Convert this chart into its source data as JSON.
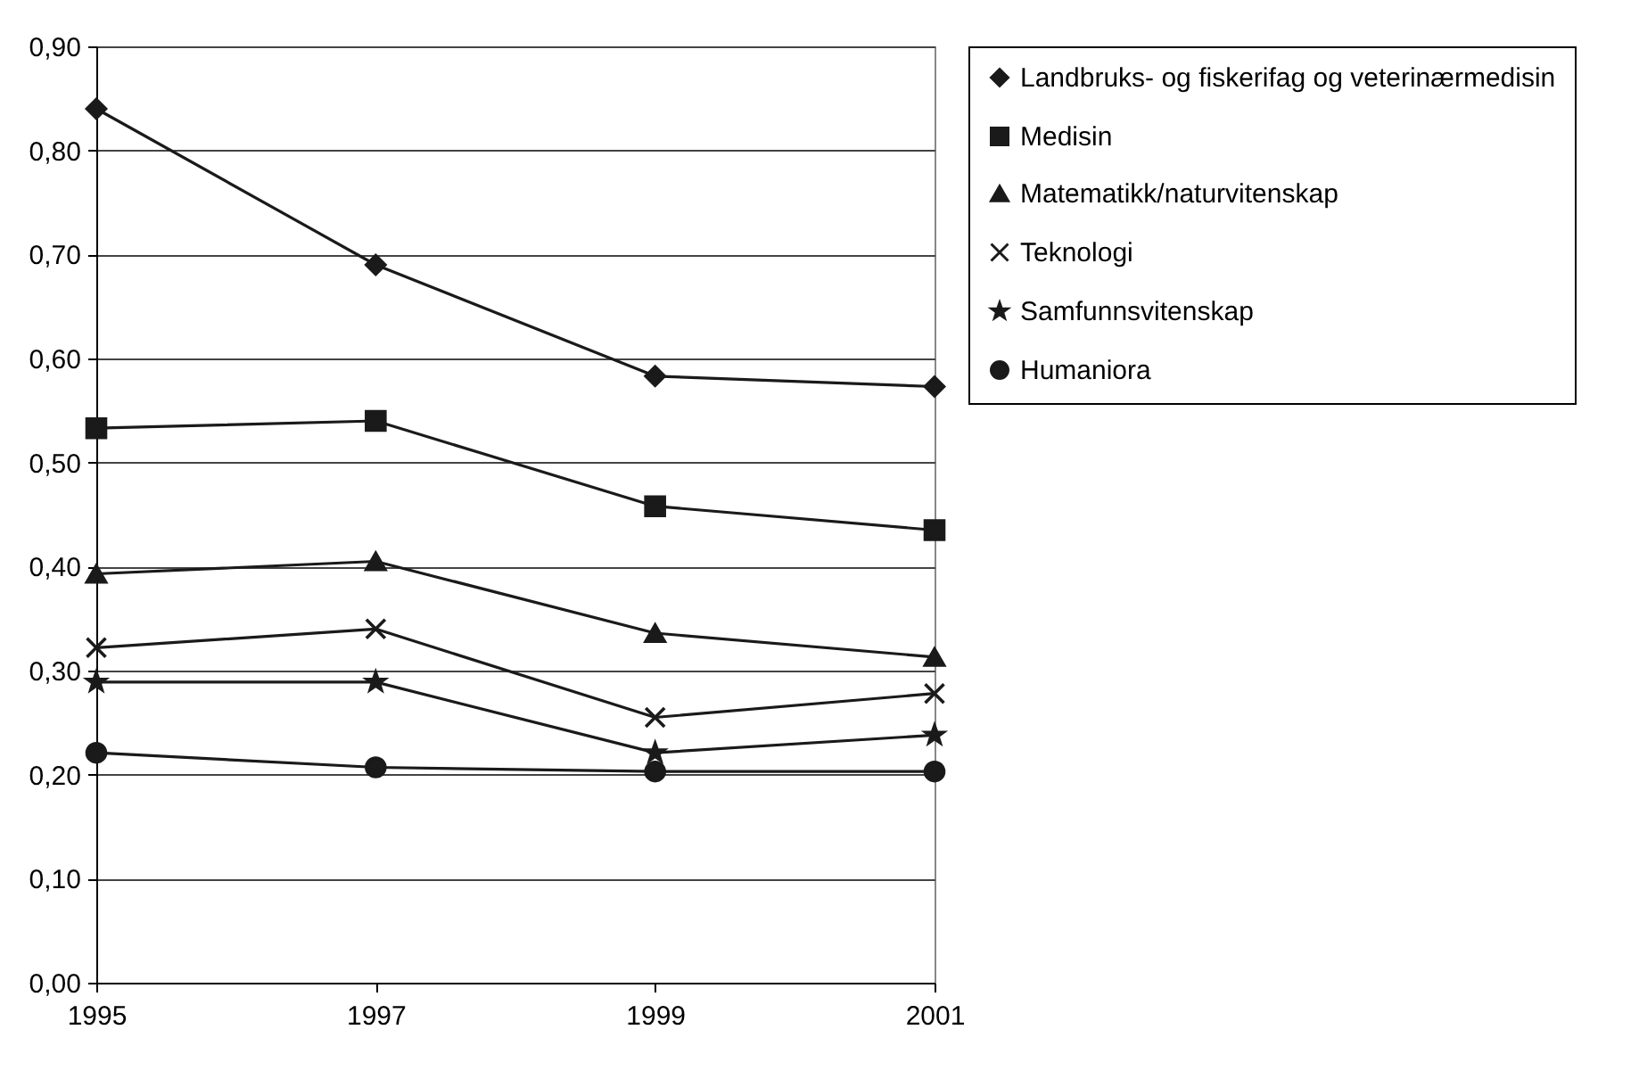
{
  "chart_data": {
    "type": "line",
    "x": [
      1995,
      1997,
      1999,
      2001
    ],
    "xlim": [
      1995,
      2001
    ],
    "xticks": [
      1995,
      1997,
      1999,
      2001
    ],
    "ylim": [
      0,
      0.9
    ],
    "yticks": [
      {
        "value": 0,
        "label": "0,00"
      },
      {
        "value": 0.1,
        "label": "0,10"
      },
      {
        "value": 0.2,
        "label": "0,20"
      },
      {
        "value": 0.3,
        "label": "0,30"
      },
      {
        "value": 0.4,
        "label": "0,40"
      },
      {
        "value": 0.5,
        "label": "0,50"
      },
      {
        "value": 0.6,
        "label": "0,60"
      },
      {
        "value": 0.7,
        "label": "0,70"
      },
      {
        "value": 0.8,
        "label": "0,80"
      },
      {
        "value": 0.9,
        "label": "0,90"
      }
    ],
    "grid": "y",
    "legend": "right",
    "series": [
      {
        "name": "Landbruks- og fiskerifag og veterinærmedisin",
        "color": "#1a1a1a",
        "marker": "diamond",
        "values": [
          0.84,
          0.69,
          0.583,
          0.573
        ]
      },
      {
        "name": "Medisin",
        "color": "#1a1a1a",
        "marker": "square",
        "values": [
          0.533,
          0.54,
          0.458,
          0.435
        ]
      },
      {
        "name": "Matematikk/naturvitenskap",
        "color": "#1a1a1a",
        "marker": "triangle",
        "values": [
          0.393,
          0.405,
          0.336,
          0.313
        ]
      },
      {
        "name": "Teknologi",
        "color": "#1a1a1a",
        "marker": "cross",
        "values": [
          0.322,
          0.34,
          0.255,
          0.278
        ]
      },
      {
        "name": "Samfunnsvitenskap",
        "color": "#1a1a1a",
        "marker": "star",
        "values": [
          0.289,
          0.289,
          0.221,
          0.238
        ]
      },
      {
        "name": "Humaniora",
        "color": "#1a1a1a",
        "marker": "circle",
        "values": [
          0.221,
          0.207,
          0.203,
          0.203
        ]
      }
    ]
  }
}
